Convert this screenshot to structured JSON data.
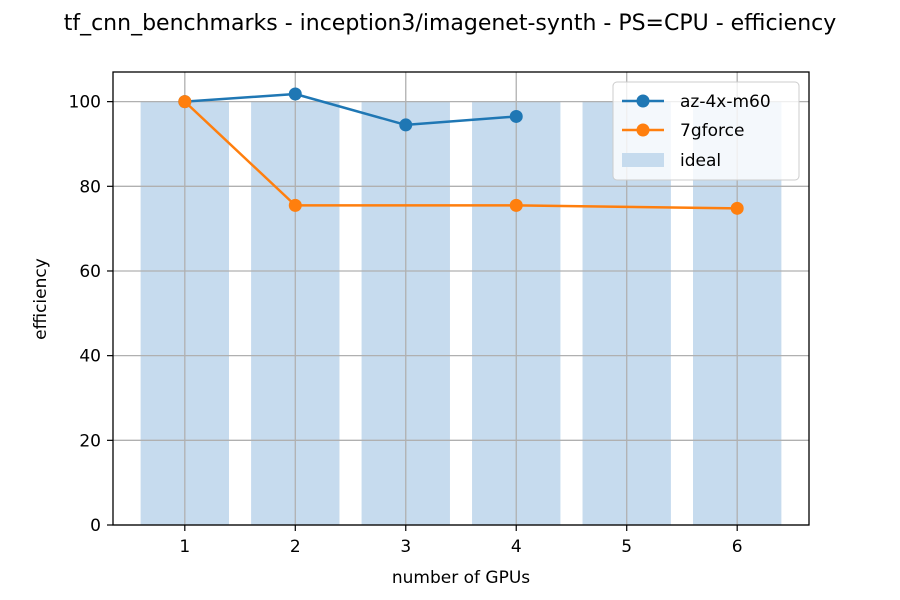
{
  "chart_data": {
    "type": "bar",
    "title": "tf_cnn_benchmarks - inception3/imagenet-synth - PS=CPU - efficiency",
    "xlabel": "number of GPUs",
    "ylabel": "efficiency",
    "x_ticks": [
      "1",
      "2",
      "3",
      "4",
      "5",
      "6"
    ],
    "y_ticks": [
      "0",
      "20",
      "40",
      "60",
      "80",
      "100"
    ],
    "xlim": [
      0.35,
      6.65
    ],
    "ylim": [
      0,
      107
    ],
    "grid": true,
    "legend_position": "top-right",
    "bars": {
      "name": "ideal",
      "x": [
        1,
        2,
        3,
        4,
        5,
        6
      ],
      "values": [
        100,
        100,
        100,
        100,
        100,
        100
      ],
      "color": "#c6dbee"
    },
    "series": [
      {
        "name": "az-4x-m60",
        "type": "line",
        "x": [
          1,
          2,
          3,
          4
        ],
        "values": [
          100,
          101.8,
          94.5,
          96.5
        ],
        "color": "#1f77b4"
      },
      {
        "name": "7gforce",
        "type": "line",
        "x": [
          1,
          2,
          4,
          6
        ],
        "values": [
          100,
          75.5,
          75.5,
          74.8
        ],
        "color": "#ff7f0e"
      }
    ]
  }
}
